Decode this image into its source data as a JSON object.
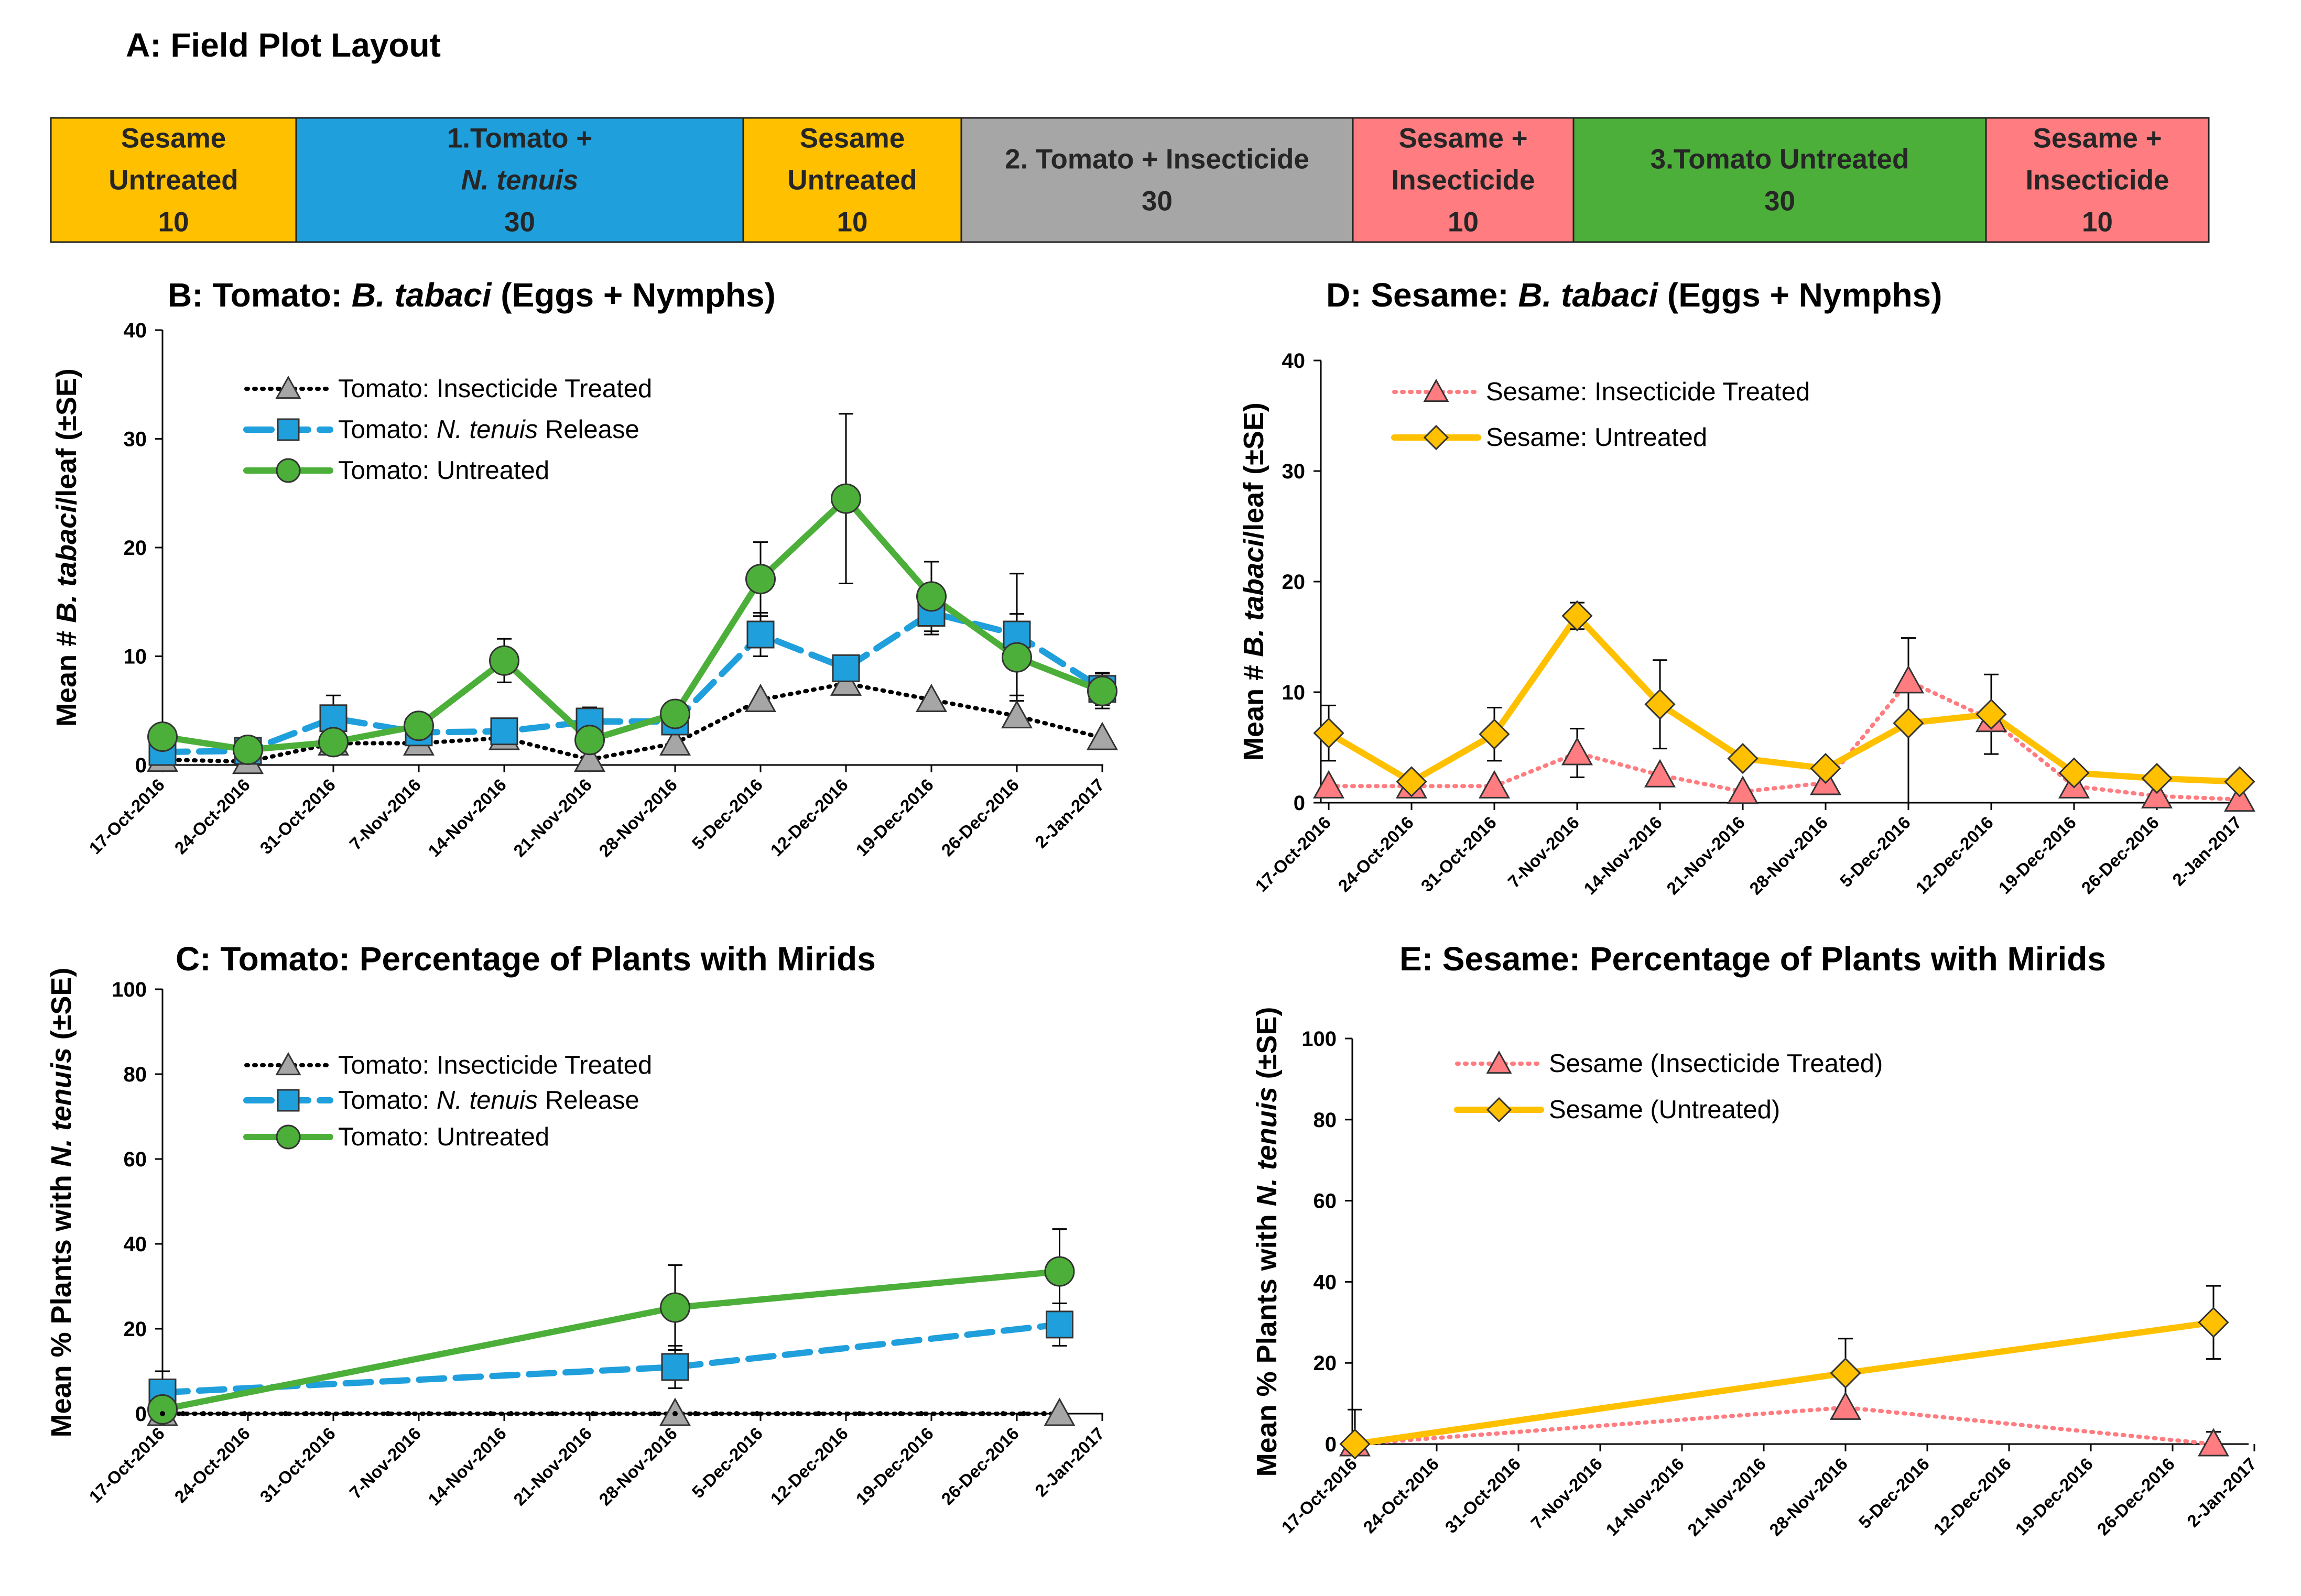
{
  "layout": {
    "title": "A: Field Plot Layout",
    "blocks": [
      {
        "lines": [
          "Sesame",
          "Untreated",
          "10"
        ],
        "color": "#FFC000"
      },
      {
        "lines": [
          "1.Tomato +",
          "N. tenuis",
          "30"
        ],
        "color": "#1F9FDB"
      },
      {
        "lines": [
          "Sesame",
          "Untreated",
          "10"
        ],
        "color": "#FFC000"
      },
      {
        "lines": [
          "2. Tomato + Insecticide",
          "30"
        ],
        "color": "#A6A6A6"
      },
      {
        "lines": [
          "Sesame +",
          "Insecticide",
          "10"
        ],
        "color": "#FF7C80"
      },
      {
        "lines": [
          "3.Tomato Untreated",
          "30"
        ],
        "color": "#4CAF3A"
      },
      {
        "lines": [
          "Sesame +",
          "Insecticide",
          "10"
        ],
        "color": "#FF7C80"
      }
    ]
  },
  "dates": [
    "17-Oct-2016",
    "24-Oct-2016",
    "31-Oct-2016",
    "7-Nov-2016",
    "14-Nov-2016",
    "21-Nov-2016",
    "28-Nov-2016",
    "5-Dec-2016",
    "12-Dec-2016",
    "19-Dec-2016",
    "26-Dec-2016",
    "2-Jan-2017"
  ],
  "chart_data": [
    {
      "id": "B",
      "type": "line",
      "title": "B: Tomato: B. tabaci (Eggs + Nymphs)",
      "ylabel": "Mean # B. tabaci/leaf (±SE)",
      "ylim": [
        0,
        40
      ],
      "yticks": [
        0,
        10,
        20,
        30,
        40
      ],
      "series": [
        {
          "name": "Tomato: Insecticide Treated",
          "style": "dotted",
          "marker": "triangle",
          "color": "#000000",
          "fill": "#A6A6A6",
          "x": [
            0,
            1,
            2,
            3,
            4,
            5,
            6,
            7,
            8,
            9,
            10,
            11
          ],
          "y": [
            0.5,
            0.3,
            2,
            2,
            2.5,
            0.5,
            2,
            6,
            7.5,
            6,
            4.5,
            2.5
          ],
          "err": [
            0,
            0,
            0,
            0,
            0,
            0,
            0,
            0,
            0,
            0,
            0,
            0
          ]
        },
        {
          "name": "Tomato: N. tenuis Release",
          "style": "dashed",
          "marker": "square",
          "color": "#1F9FDB",
          "fill": "#1F9FDB",
          "x": [
            0,
            1,
            2,
            3,
            4,
            5,
            6,
            7,
            8,
            9,
            10,
            11
          ],
          "y": [
            1.2,
            1.3,
            4.3,
            3,
            3.1,
            4,
            4,
            12,
            8.9,
            14,
            12,
            7
          ],
          "err": [
            0,
            0,
            2.1,
            0,
            0,
            1.3,
            0,
            2,
            0,
            2,
            5.6,
            1.5
          ]
        },
        {
          "name": "Tomato: Untreated",
          "style": "solid",
          "marker": "circle",
          "color": "#4CAF3A",
          "fill": "#4CAF3A",
          "x": [
            0,
            1,
            2,
            3,
            4,
            5,
            6,
            7,
            8,
            9,
            10,
            11
          ],
          "y": [
            2.6,
            1.4,
            2.1,
            3.6,
            9.6,
            2.3,
            4.7,
            17.1,
            24.5,
            15.5,
            9.9,
            6.8
          ],
          "err": [
            0,
            0,
            0,
            0,
            2,
            0,
            0,
            3.4,
            7.8,
            3.2,
            4,
            1.6
          ]
        }
      ]
    },
    {
      "id": "D",
      "type": "line",
      "title": "D: Sesame: B. tabaci (Eggs + Nymphs)",
      "ylabel": "Mean # B. tabaci/leaf (±SE)",
      "ylim": [
        0,
        40
      ],
      "yticks": [
        0,
        10,
        20,
        30,
        40
      ],
      "series": [
        {
          "name": "Sesame: Insecticide Treated",
          "style": "dotted",
          "marker": "triangle",
          "color": "#FF7C80",
          "fill": "#FF7C80",
          "x": [
            0,
            1,
            2,
            3,
            4,
            5,
            6,
            7,
            8,
            9,
            10,
            11
          ],
          "y": [
            1.5,
            1.5,
            1.5,
            4.5,
            2.5,
            1,
            1.8,
            11,
            7.5,
            1.5,
            0.6,
            0.3
          ],
          "err": [
            0,
            0,
            0,
            2.2,
            0,
            0,
            0,
            0,
            0,
            0,
            0,
            0
          ]
        },
        {
          "name": "Sesame: Untreated",
          "style": "solid",
          "marker": "diamond",
          "color": "#FFC000",
          "fill": "#FFC000",
          "x": [
            0,
            1,
            2,
            3,
            4,
            5,
            6,
            7,
            8,
            9,
            10,
            11
          ],
          "y": [
            6.3,
            1.9,
            6.2,
            16.9,
            8.9,
            4,
            3.1,
            7.2,
            8,
            2.7,
            2.2,
            1.9
          ],
          "err": [
            2.5,
            0,
            2.4,
            1.2,
            4,
            0,
            0,
            7.7,
            3.6,
            0,
            0,
            0
          ]
        }
      ]
    },
    {
      "id": "C",
      "type": "line",
      "title": "C: Tomato: Percentage of Plants with Mirids",
      "ylabel": "Mean % Plants with N. tenuis (±SE)",
      "ylim": [
        0,
        100
      ],
      "yticks": [
        0,
        20,
        40,
        60,
        80,
        100
      ],
      "series": [
        {
          "name": "Tomato: Insecticide Treated",
          "style": "dotted",
          "marker": "triangle",
          "color": "#000000",
          "fill": "#A6A6A6",
          "x": [
            0,
            6,
            10.5
          ],
          "y": [
            0,
            0,
            0
          ],
          "err": [
            0,
            0,
            0
          ]
        },
        {
          "name": "Tomato: N. tenuis Release",
          "style": "dashed",
          "marker": "square",
          "color": "#1F9FDB",
          "fill": "#1F9FDB",
          "x": [
            0,
            6,
            10.5
          ],
          "y": [
            5,
            11,
            21
          ],
          "err": [
            5,
            5,
            5
          ]
        },
        {
          "name": "Tomato: Untreated",
          "style": "solid",
          "marker": "circle",
          "color": "#4CAF3A",
          "fill": "#4CAF3A",
          "x": [
            0,
            6,
            10.5
          ],
          "y": [
            1,
            25,
            33.5
          ],
          "err": [
            0,
            10,
            10
          ]
        }
      ]
    },
    {
      "id": "E",
      "type": "line",
      "title": "E: Sesame: Percentage of Plants with Mirids",
      "ylabel": "Mean % Plants with N. tenuis (±SE)",
      "ylim": [
        0,
        100
      ],
      "yticks": [
        0,
        20,
        40,
        60,
        80,
        100
      ],
      "series": [
        {
          "name": "Sesame (Insecticide Treated)",
          "style": "dotted",
          "marker": "triangle",
          "color": "#FF7C80",
          "fill": "#FF7C80",
          "x": [
            0,
            6,
            10.5
          ],
          "y": [
            0,
            9,
            0
          ],
          "err": [
            0,
            0,
            3
          ]
        },
        {
          "name": "Sesame (Untreated)",
          "style": "solid",
          "marker": "diamond",
          "color": "#FFC000",
          "fill": "#FFC000",
          "x": [
            0,
            6,
            10.5
          ],
          "y": [
            0,
            17.5,
            30
          ],
          "err": [
            8.5,
            8.5,
            9
          ]
        }
      ]
    }
  ]
}
